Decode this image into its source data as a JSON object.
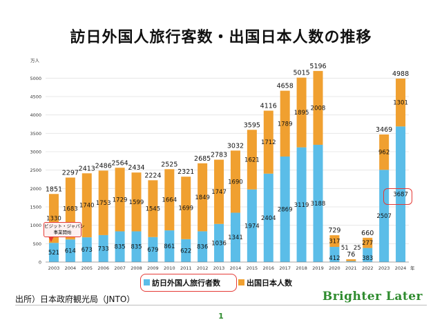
{
  "slide": {
    "title": "訪日外国人旅行客数・出国日本人数の推移",
    "source": "出所）日本政府観光局（JNTO）",
    "brand": "Brighter Later",
    "page_number": "1"
  },
  "callout": {
    "line1": "ビジット・ジャパン",
    "line2": "事業開始"
  },
  "colors": {
    "inbound": "#5bbde8",
    "outbound": "#f0a030",
    "highlight": "#e53935",
    "brand": "#2e8b2e"
  },
  "chart_data": {
    "type": "bar",
    "stacked": true,
    "categories": [
      "2003",
      "2004",
      "2005",
      "2006",
      "2007",
      "2008",
      "2009",
      "2010",
      "2011",
      "2012",
      "2013",
      "2014",
      "2015",
      "2016",
      "2017",
      "2018",
      "2019",
      "2020",
      "2021",
      "2022",
      "2023",
      "2024"
    ],
    "series": [
      {
        "name": "訪日外国人旅行者数",
        "values": [
          521,
          614,
          673,
          733,
          835,
          835,
          679,
          861,
          622,
          836,
          1036,
          1341,
          1974,
          2404,
          2869,
          3119,
          3188,
          412,
          25,
          383,
          2507,
          3687
        ]
      },
      {
        "name": "出国日本人数",
        "values": [
          1330,
          1683,
          1740,
          1753,
          1729,
          1599,
          1545,
          1664,
          1699,
          1849,
          1747,
          1690,
          1621,
          1712,
          1789,
          1895,
          2008,
          317,
          51,
          277,
          962,
          1301
        ]
      }
    ],
    "totals": [
      1851,
      2297,
      2413,
      2486,
      2564,
      2434,
      2224,
      2525,
      2321,
      2685,
      2783,
      3032,
      3595,
      4116,
      4658,
      5015,
      5196,
      729,
      76,
      660,
      3469,
      4988
    ],
    "ylabel": "万人",
    "xlabel": "年",
    "ylim": [
      0,
      5250
    ],
    "yticks": [
      0,
      500,
      1000,
      1500,
      2000,
      2500,
      3000,
      3500,
      4000,
      4500,
      5000
    ],
    "grid": true,
    "legend": "bottom"
  }
}
